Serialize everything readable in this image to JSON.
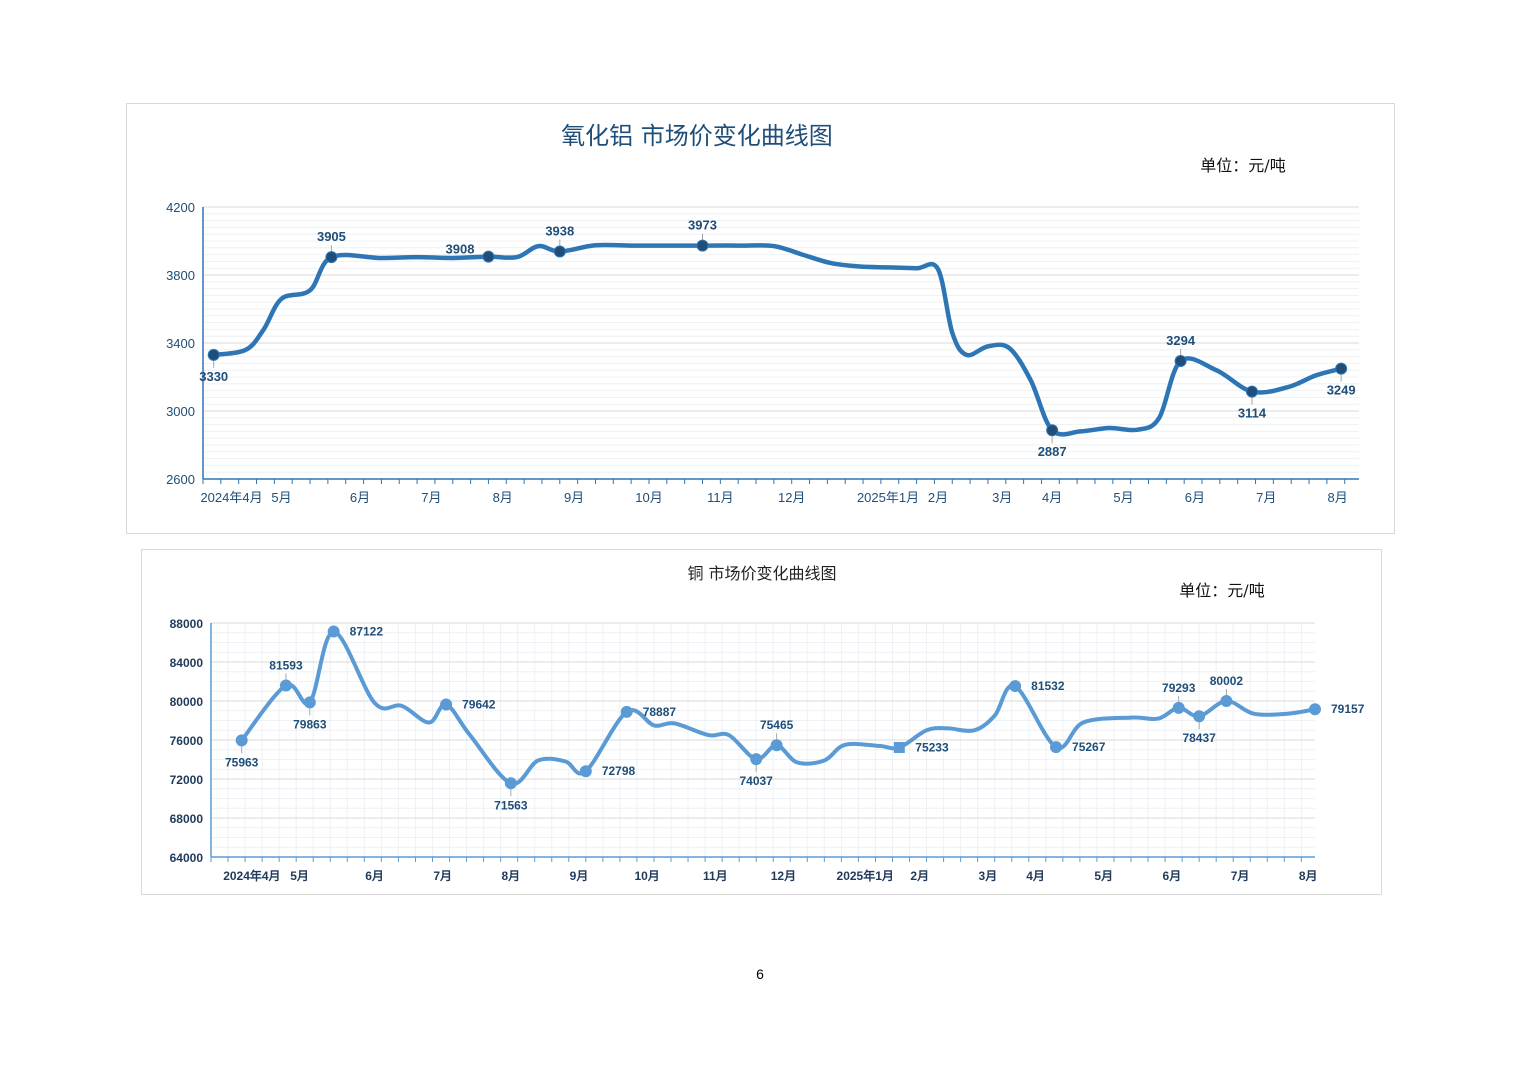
{
  "page_number": "6",
  "chart_data": [
    {
      "type": "line",
      "title": "氧化铝 市场价变化曲线图",
      "unit_label": "单位：元/吨",
      "ylim": [
        2600,
        4200
      ],
      "yticks": [
        "2600",
        "3000",
        "3400",
        "3800",
        "4200"
      ],
      "xlim": [
        0,
        16.2
      ],
      "xticks": [
        {
          "label": "2024年4月",
          "x": 0.4
        },
        {
          "label": "5月",
          "x": 1.1
        },
        {
          "label": "6月",
          "x": 2.2
        },
        {
          "label": "7月",
          "x": 3.2
        },
        {
          "label": "8月",
          "x": 4.2
        },
        {
          "label": "9月",
          "x": 5.2
        },
        {
          "label": "10月",
          "x": 6.25
        },
        {
          "label": "11月",
          "x": 7.25
        },
        {
          "label": "12月",
          "x": 8.25
        },
        {
          "label": "2025年1月",
          "x": 9.6
        },
        {
          "label": "2月",
          "x": 10.3
        },
        {
          "label": "3月",
          "x": 11.2
        },
        {
          "label": "4月",
          "x": 11.9
        },
        {
          "label": "5月",
          "x": 12.9
        },
        {
          "label": "6月",
          "x": 13.9
        },
        {
          "label": "7月",
          "x": 14.9
        },
        {
          "label": "8月",
          "x": 15.9
        }
      ],
      "grid": true,
      "color": "#2e75b6",
      "marker_color": "#1f4e79",
      "series": [
        {
          "x": [
            0.15,
            0.6,
            0.85,
            1.1,
            1.5,
            1.8,
            2.5,
            3.0,
            3.5,
            4.0,
            4.4,
            4.7,
            5.0,
            5.5,
            6.0,
            7.0,
            7.5,
            8.0,
            8.4,
            8.8,
            9.2,
            9.6,
            10.0,
            10.3,
            10.5,
            10.7,
            11.0,
            11.3,
            11.6,
            11.9,
            12.3,
            12.7,
            13.1,
            13.4,
            13.7,
            14.2,
            14.7,
            15.2,
            15.6,
            15.95
          ],
          "y": [
            3330,
            3360,
            3480,
            3660,
            3710,
            3905,
            3900,
            3905,
            3900,
            3908,
            3905,
            3970,
            3938,
            3975,
            3973,
            3973,
            3973,
            3970,
            3920,
            3870,
            3850,
            3845,
            3840,
            3835,
            3460,
            3330,
            3380,
            3370,
            3180,
            2887,
            2880,
            2900,
            2890,
            2960,
            3294,
            3240,
            3114,
            3140,
            3210,
            3249
          ]
        }
      ],
      "points": [
        {
          "x": 0.15,
          "y": 3330,
          "label": "3330",
          "pos": "below"
        },
        {
          "x": 1.8,
          "y": 3905,
          "label": "3905",
          "pos": "above"
        },
        {
          "x": 4.0,
          "y": 3908,
          "label": "3908",
          "pos": "left"
        },
        {
          "x": 5.0,
          "y": 3938,
          "label": "3938",
          "pos": "above"
        },
        {
          "x": 7.0,
          "y": 3973,
          "label": "3973",
          "pos": "above"
        },
        {
          "x": 11.9,
          "y": 2887,
          "label": "2887",
          "pos": "below"
        },
        {
          "x": 13.7,
          "y": 3294,
          "label": "3294",
          "pos": "above"
        },
        {
          "x": 14.7,
          "y": 3114,
          "label": "3114",
          "pos": "below"
        },
        {
          "x": 15.95,
          "y": 3249,
          "label": "3249",
          "pos": "below"
        }
      ]
    },
    {
      "type": "line",
      "title": "铜 市场价变化曲线图",
      "unit_label": "单位：元/吨",
      "ylim": [
        64000,
        88000
      ],
      "yticks": [
        "64000",
        "68000",
        "72000",
        "76000",
        "80000",
        "84000",
        "88000"
      ],
      "xlim": [
        0,
        16.2
      ],
      "xticks": [
        {
          "label": "2024年4月",
          "x": 0.6
        },
        {
          "label": "5月",
          "x": 1.3
        },
        {
          "label": "6月",
          "x": 2.4
        },
        {
          "label": "7月",
          "x": 3.4
        },
        {
          "label": "8月",
          "x": 4.4
        },
        {
          "label": "9月",
          "x": 5.4
        },
        {
          "label": "10月",
          "x": 6.4
        },
        {
          "label": "11月",
          "x": 7.4
        },
        {
          "label": "12月",
          "x": 8.4
        },
        {
          "label": "2025年1月",
          "x": 9.6
        },
        {
          "label": "2月",
          "x": 10.4
        },
        {
          "label": "3月",
          "x": 11.4
        },
        {
          "label": "4月",
          "x": 12.1
        },
        {
          "label": "5月",
          "x": 13.1
        },
        {
          "label": "6月",
          "x": 14.1
        },
        {
          "label": "7月",
          "x": 15.1
        },
        {
          "label": "8月",
          "x": 16.1
        }
      ],
      "grid": true,
      "color": "#5b9bd5",
      "marker_color": "#5b9bd5",
      "series": [
        {
          "x": [
            0.45,
            1.1,
            1.45,
            1.8,
            2.4,
            2.8,
            3.2,
            3.45,
            3.8,
            4.4,
            4.8,
            5.2,
            5.5,
            6.1,
            6.5,
            6.8,
            7.3,
            7.6,
            8.0,
            8.3,
            8.6,
            9.0,
            9.3,
            9.8,
            10.1,
            10.5,
            10.8,
            11.2,
            11.5,
            11.8,
            12.4,
            12.8,
            13.5,
            13.9,
            14.2,
            14.5,
            14.9,
            15.3,
            15.8,
            16.2
          ],
          "y": [
            75963,
            81593,
            79863,
            87122,
            79800,
            79500,
            77800,
            79642,
            76500,
            71563,
            73900,
            73800,
            72798,
            78887,
            77500,
            77700,
            76500,
            76500,
            74037,
            75465,
            73700,
            73900,
            75500,
            75400,
            75233,
            77000,
            77200,
            77000,
            78500,
            81532,
            75267,
            77800,
            78300,
            78200,
            79293,
            78437,
            80002,
            78700,
            78700,
            79157
          ]
        }
      ],
      "points": [
        {
          "x": 0.45,
          "y": 75963,
          "label": "75963",
          "pos": "below"
        },
        {
          "x": 1.1,
          "y": 81593,
          "label": "81593",
          "pos": "above"
        },
        {
          "x": 1.45,
          "y": 79863,
          "label": "79863",
          "pos": "below"
        },
        {
          "x": 1.8,
          "y": 87122,
          "label": "87122",
          "pos": "right"
        },
        {
          "x": 3.45,
          "y": 79642,
          "label": "79642",
          "pos": "right"
        },
        {
          "x": 4.4,
          "y": 71563,
          "label": "71563",
          "pos": "below"
        },
        {
          "x": 5.5,
          "y": 72798,
          "label": "72798",
          "pos": "right"
        },
        {
          "x": 6.1,
          "y": 78887,
          "label": "78887",
          "pos": "right"
        },
        {
          "x": 8.0,
          "y": 74037,
          "label": "74037",
          "pos": "below"
        },
        {
          "x": 8.3,
          "y": 75465,
          "label": "75465",
          "pos": "above"
        },
        {
          "x": 10.1,
          "y": 75233,
          "label": "75233",
          "pos": "right",
          "marker": "square"
        },
        {
          "x": 11.8,
          "y": 81532,
          "label": "81532",
          "pos": "right"
        },
        {
          "x": 12.4,
          "y": 75267,
          "label": "75267",
          "pos": "right"
        },
        {
          "x": 14.2,
          "y": 79293,
          "label": "79293",
          "pos": "above"
        },
        {
          "x": 14.5,
          "y": 78437,
          "label": "78437",
          "pos": "below"
        },
        {
          "x": 14.9,
          "y": 80002,
          "label": "80002",
          "pos": "above"
        },
        {
          "x": 16.2,
          "y": 79157,
          "label": "79157",
          "pos": "right"
        }
      ]
    }
  ]
}
